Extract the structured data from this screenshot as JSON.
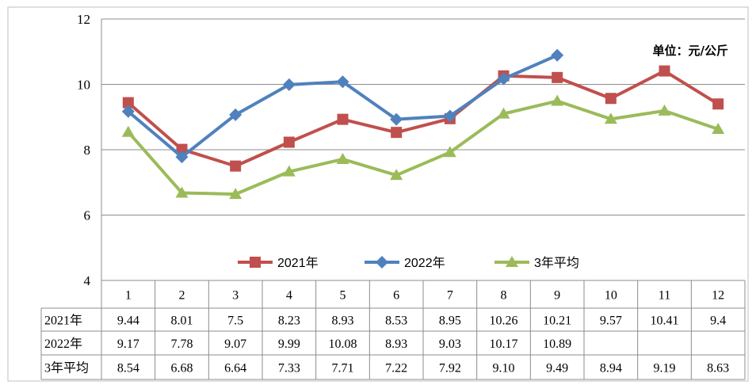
{
  "chart_data": {
    "type": "line",
    "unit_label": "单位：元/公斤",
    "categories": [
      "1",
      "2",
      "3",
      "4",
      "5",
      "6",
      "7",
      "8",
      "9",
      "10",
      "11",
      "12"
    ],
    "ylim": [
      4,
      12
    ],
    "yticks": [
      "4",
      "6",
      "8",
      "10",
      "12"
    ],
    "grid": true,
    "legend_position": "bottom-center",
    "series": [
      {
        "name": "2021年",
        "color": "#c0504d",
        "marker": "square",
        "values": [
          9.44,
          8.01,
          7.5,
          8.23,
          8.93,
          8.53,
          8.95,
          10.26,
          10.21,
          9.57,
          10.41,
          9.4
        ],
        "labels": [
          "9.44",
          "8.01",
          "7.5",
          "8.23",
          "8.93",
          "8.53",
          "8.95",
          "10.26",
          "10.21",
          "9.57",
          "10.41",
          "9.4"
        ]
      },
      {
        "name": "2022年",
        "color": "#4f81bd",
        "marker": "diamond",
        "values": [
          9.17,
          7.78,
          9.07,
          9.99,
          10.08,
          8.93,
          9.03,
          10.17,
          10.89,
          null,
          null,
          null
        ],
        "labels": [
          "9.17",
          "7.78",
          "9.07",
          "9.99",
          "10.08",
          "8.93",
          "9.03",
          "10.17",
          "10.89",
          "",
          "",
          ""
        ]
      },
      {
        "name": "3年平均",
        "color": "#9bbb59",
        "marker": "triangle",
        "values": [
          8.54,
          6.68,
          6.64,
          7.33,
          7.71,
          7.22,
          7.92,
          9.1,
          9.49,
          8.94,
          9.19,
          8.63
        ],
        "labels": [
          "8.54",
          "6.68",
          "6.64",
          "7.33",
          "7.71",
          "7.22",
          "7.92",
          "9.10",
          "9.49",
          "8.94",
          "9.19",
          "8.63"
        ]
      }
    ]
  }
}
